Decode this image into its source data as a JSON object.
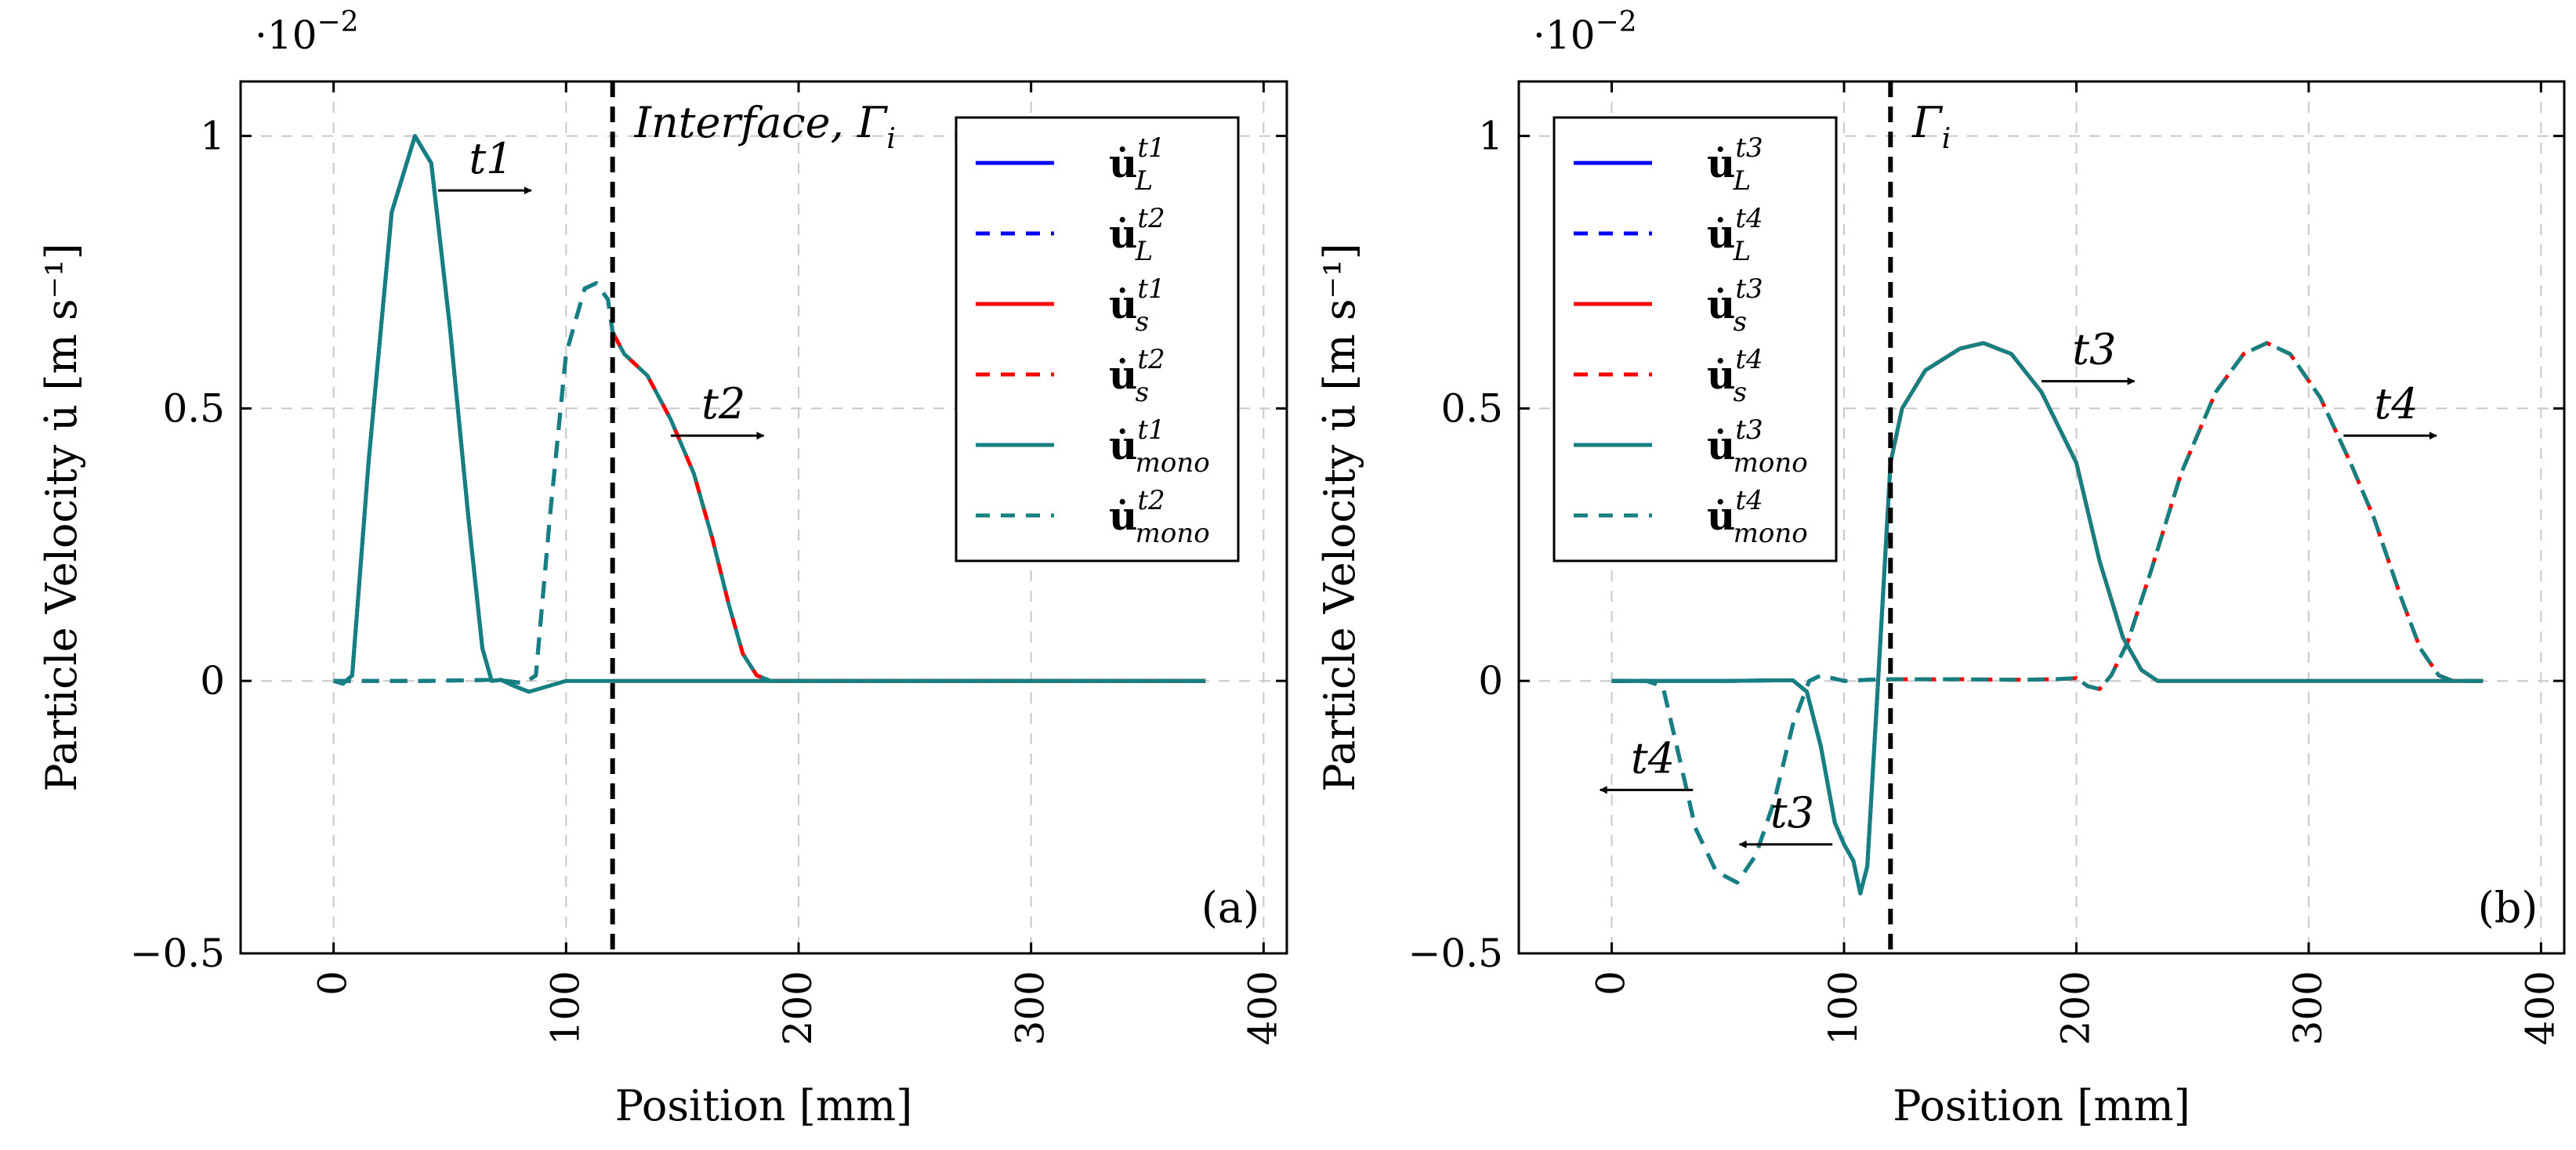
{
  "colors": {
    "blue": "#0000ff",
    "red": "#ff0000",
    "teal": "#168080",
    "grid": "#c8c8c8",
    "interface": "#000000"
  },
  "chart_data": [
    {
      "type": "line",
      "panel_label": "(a)",
      "xlabel": "Position [mm]",
      "ylabel": "Particle Velocity u̇ [m s⁻¹]",
      "y_multiplier": "·10",
      "y_multiplier_exp": "−2",
      "xlim": [
        -40,
        410
      ],
      "ylim": [
        -0.5,
        1.1
      ],
      "xticks": [
        0,
        100,
        200,
        300,
        400
      ],
      "xtick_labels": [
        "0",
        "100",
        "200",
        "300",
        "400"
      ],
      "yticks": [
        -0.5,
        0,
        0.5,
        1
      ],
      "ytick_labels": [
        "−0.5",
        "0",
        "0.5",
        "1"
      ],
      "interface_x": 120,
      "interface_label": "Interface, Γ",
      "interface_sub": "i",
      "legend": [
        {
          "base": "u̇",
          "sup": "t1",
          "sub": "L",
          "color": "blue",
          "dash": false
        },
        {
          "base": "u̇",
          "sup": "t2",
          "sub": "L",
          "color": "blue",
          "dash": true
        },
        {
          "base": "u̇",
          "sup": "t1",
          "sub": "s",
          "color": "red",
          "dash": false
        },
        {
          "base": "u̇",
          "sup": "t2",
          "sub": "s",
          "color": "red",
          "dash": true
        },
        {
          "base": "u̇",
          "sup": "t1",
          "sub": "mono",
          "color": "teal",
          "dash": false
        },
        {
          "base": "u̇",
          "sup": "t2",
          "sub": "mono",
          "color": "teal",
          "dash": true
        }
      ],
      "annotations": [
        {
          "label": "t1",
          "x1": 45,
          "x2": 85,
          "y": 0.9
        },
        {
          "label": "t2",
          "x1": 145,
          "x2": 185,
          "y": 0.45
        }
      ],
      "series": [
        {
          "name": "u_L t1",
          "color": "blue",
          "dash": false,
          "x": [
            0,
            4,
            8,
            15,
            25,
            35,
            42,
            50,
            58,
            64,
            68,
            72,
            78,
            84
          ],
          "y": [
            0,
            -0.005,
            0.01,
            0.4,
            0.86,
            1.0,
            0.95,
            0.65,
            0.3,
            0.06,
            0,
            0.002,
            -0.01,
            -0.02
          ]
        },
        {
          "name": "u_L t2",
          "color": "blue",
          "dash": true,
          "x": [
            0,
            40,
            70,
            82,
            87,
            93,
            100,
            108,
            113,
            118,
            120
          ],
          "y": [
            0,
            0,
            0.002,
            -0.004,
            0.01,
            0.3,
            0.6,
            0.72,
            0.73,
            0.7,
            0.64
          ]
        },
        {
          "name": "u_s t1",
          "color": "red",
          "dash": false,
          "x": [
            120,
            375
          ],
          "y": [
            0,
            0
          ]
        },
        {
          "name": "u_s t2",
          "color": "red",
          "dash": true,
          "x": [
            120,
            125,
            135,
            145,
            155,
            163,
            170,
            176,
            182,
            188,
            200,
            375
          ],
          "y": [
            0.64,
            0.6,
            0.56,
            0.48,
            0.38,
            0.26,
            0.14,
            0.05,
            0.01,
            0,
            0,
            0
          ]
        },
        {
          "name": "u_mono t1",
          "color": "teal",
          "dash": false,
          "x": [
            0,
            4,
            8,
            15,
            25,
            35,
            42,
            50,
            58,
            64,
            68,
            72,
            78,
            84,
            100,
            200,
            300,
            375
          ],
          "y": [
            0,
            -0.005,
            0.01,
            0.4,
            0.86,
            1.0,
            0.95,
            0.65,
            0.3,
            0.06,
            0,
            0.002,
            -0.01,
            -0.02,
            0,
            0,
            0,
            0
          ]
        },
        {
          "name": "u_mono t2",
          "color": "teal",
          "dash": true,
          "x": [
            0,
            40,
            70,
            82,
            87,
            93,
            100,
            108,
            113,
            118,
            120,
            125,
            135,
            145,
            155,
            163,
            170,
            176,
            182,
            188,
            200,
            375
          ],
          "y": [
            0,
            0,
            0.002,
            -0.004,
            0.01,
            0.3,
            0.6,
            0.72,
            0.73,
            0.7,
            0.64,
            0.6,
            0.56,
            0.48,
            0.38,
            0.26,
            0.14,
            0.05,
            0.01,
            0,
            0,
            0
          ]
        }
      ]
    },
    {
      "type": "line",
      "panel_label": "(b)",
      "xlabel": "Position [mm]",
      "ylabel": "Particle Velocity u̇ [m s⁻¹]",
      "y_multiplier": "·10",
      "y_multiplier_exp": "−2",
      "xlim": [
        -40,
        410
      ],
      "ylim": [
        -0.5,
        1.1
      ],
      "xticks": [
        0,
        100,
        200,
        300,
        400
      ],
      "xtick_labels": [
        "0",
        "100",
        "200",
        "300",
        "400"
      ],
      "yticks": [
        -0.5,
        0,
        0.5,
        1
      ],
      "ytick_labels": [
        "−0.5",
        "0",
        "0.5",
        "1"
      ],
      "interface_x": 120,
      "interface_label": "Γ",
      "interface_sub": "i",
      "legend": [
        {
          "base": "u̇",
          "sup": "t3",
          "sub": "L",
          "color": "blue",
          "dash": false
        },
        {
          "base": "u̇",
          "sup": "t4",
          "sub": "L",
          "color": "blue",
          "dash": true
        },
        {
          "base": "u̇",
          "sup": "t3",
          "sub": "s",
          "color": "red",
          "dash": false
        },
        {
          "base": "u̇",
          "sup": "t4",
          "sub": "s",
          "color": "red",
          "dash": true
        },
        {
          "base": "u̇",
          "sup": "t3",
          "sub": "mono",
          "color": "teal",
          "dash": false
        },
        {
          "base": "u̇",
          "sup": "t4",
          "sub": "mono",
          "color": "teal",
          "dash": true
        }
      ],
      "annotations": [
        {
          "label": "t3",
          "x1": 185,
          "x2": 225,
          "y": 0.55
        },
        {
          "label": "t4",
          "x1": 315,
          "x2": 355,
          "y": 0.45
        },
        {
          "label": "t3",
          "x1": 95,
          "x2": 55,
          "y": -0.3
        },
        {
          "label": "t4",
          "x1": 35,
          "x2": -5,
          "y": -0.2
        }
      ],
      "series": [
        {
          "name": "u_L t3",
          "color": "blue",
          "dash": false,
          "x": [
            0,
            50,
            70,
            78,
            84,
            90,
            96,
            100,
            104,
            107,
            110,
            114,
            118,
            120
          ],
          "y": [
            0,
            0,
            0.001,
            0.001,
            -0.02,
            -0.12,
            -0.26,
            -0.3,
            -0.33,
            -0.39,
            -0.34,
            -0.05,
            0.25,
            0.4
          ]
        },
        {
          "name": "u_L t4",
          "color": "blue",
          "dash": true,
          "x": [
            0,
            15,
            22,
            28,
            36,
            45,
            54,
            62,
            70,
            78,
            85,
            90,
            95,
            100,
            110,
            120
          ],
          "y": [
            0,
            0,
            -0.01,
            -0.12,
            -0.27,
            -0.35,
            -0.37,
            -0.32,
            -0.22,
            -0.08,
            0,
            0.01,
            0.005,
            0,
            0.002,
            0.003
          ]
        },
        {
          "name": "u_s t3",
          "color": "red",
          "dash": false,
          "x": [
            120,
            125,
            135,
            150,
            160,
            172,
            185,
            200,
            210,
            220,
            228,
            235,
            245,
            375
          ],
          "y": [
            0.4,
            0.5,
            0.57,
            0.61,
            0.62,
            0.6,
            0.53,
            0.4,
            0.22,
            0.08,
            0.02,
            0,
            0,
            0
          ]
        },
        {
          "name": "u_s t4",
          "color": "red",
          "dash": true,
          "x": [
            120,
            150,
            175,
            190,
            200,
            205,
            210,
            215,
            222,
            232,
            245,
            260,
            272,
            282,
            292,
            305,
            318,
            328,
            340,
            348,
            356,
            362,
            375
          ],
          "y": [
            0.003,
            0.003,
            0.002,
            0.003,
            0.005,
            -0.01,
            -0.015,
            0.01,
            0.07,
            0.2,
            0.38,
            0.53,
            0.6,
            0.62,
            0.6,
            0.52,
            0.4,
            0.3,
            0.15,
            0.06,
            0.01,
            0,
            0
          ]
        },
        {
          "name": "u_mono t3",
          "color": "teal",
          "dash": false,
          "x": [
            0,
            50,
            70,
            78,
            84,
            90,
            96,
            100,
            104,
            107,
            110,
            114,
            118,
            120,
            125,
            135,
            150,
            160,
            172,
            185,
            200,
            210,
            220,
            228,
            235,
            245,
            375
          ],
          "y": [
            0,
            0,
            0.001,
            0.001,
            -0.02,
            -0.12,
            -0.26,
            -0.3,
            -0.33,
            -0.39,
            -0.34,
            -0.05,
            0.25,
            0.4,
            0.5,
            0.57,
            0.61,
            0.62,
            0.6,
            0.53,
            0.4,
            0.22,
            0.08,
            0.02,
            0,
            0,
            0
          ]
        },
        {
          "name": "u_mono t4",
          "color": "teal",
          "dash": true,
          "x": [
            0,
            15,
            22,
            28,
            36,
            45,
            54,
            62,
            70,
            78,
            85,
            90,
            95,
            100,
            110,
            120,
            150,
            175,
            190,
            200,
            205,
            210,
            215,
            222,
            232,
            245,
            260,
            272,
            282,
            292,
            305,
            318,
            328,
            340,
            348,
            356,
            362,
            375
          ],
          "y": [
            0,
            0,
            -0.01,
            -0.12,
            -0.27,
            -0.35,
            -0.37,
            -0.32,
            -0.22,
            -0.08,
            0,
            0.01,
            0.005,
            0,
            0.002,
            0.003,
            0.003,
            0.002,
            0.003,
            0.005,
            -0.01,
            -0.015,
            0.01,
            0.07,
            0.2,
            0.38,
            0.53,
            0.6,
            0.62,
            0.6,
            0.52,
            0.4,
            0.3,
            0.15,
            0.06,
            0.01,
            0,
            0
          ]
        }
      ]
    }
  ]
}
